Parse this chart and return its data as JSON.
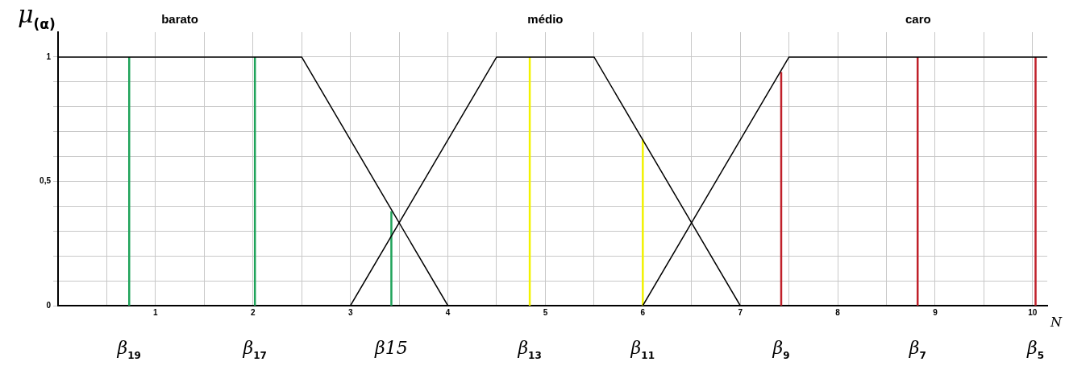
{
  "chart_data": {
    "type": "line",
    "xlabel": "N",
    "ylabel": "μ$_{(α)}$",
    "xlim": [
      0,
      10.15
    ],
    "ylim": [
      0,
      1.1
    ],
    "xticks": [
      {
        "value": 0.5,
        "label": null
      },
      1,
      {
        "value": 1.5,
        "label": null
      },
      2,
      {
        "value": 2.5,
        "label": null
      },
      3,
      {
        "value": 3.5,
        "label": null
      },
      4,
      {
        "value": 4.5,
        "label": null
      },
      5,
      {
        "value": 5.5,
        "label": null
      },
      6,
      {
        "value": 6.5,
        "label": null
      },
      7,
      {
        "value": 7.5,
        "label": null
      },
      8,
      {
        "value": 8.5,
        "label": null
      },
      9,
      {
        "value": 9.5,
        "label": null
      },
      10
    ],
    "yticks": [
      0,
      {
        "value": 0.1,
        "label": null
      },
      {
        "value": 0.2,
        "label": null
      },
      {
        "value": 0.3,
        "label": null
      },
      {
        "value": 0.4,
        "label": null
      },
      {
        "value": 0.5,
        "label": "0,5"
      },
      {
        "value": 0.6,
        "label": null
      },
      {
        "value": 0.7,
        "label": null
      },
      {
        "value": 0.8,
        "label": null
      },
      {
        "value": 0.9,
        "label": null
      },
      {
        "value": 1,
        "label": "1"
      }
    ],
    "grid": true,
    "legend": false,
    "marker": "none",
    "line_style": "solid",
    "series": [
      {
        "name": "barato",
        "color": "#000000",
        "x": [
          0,
          2.5,
          4
        ],
        "values": [
          1,
          1,
          0
        ]
      },
      {
        "name": "médio",
        "color": "#000000",
        "x": [
          3,
          4.5,
          5.5,
          7
        ],
        "values": [
          0,
          1,
          1,
          0
        ]
      },
      {
        "name": "caro",
        "color": "#000000",
        "x": [
          6,
          7.5,
          10.15
        ],
        "values": [
          0,
          1,
          1
        ]
      },
      {
        "name": "β$_{19}$",
        "color": "#1fa35a",
        "x": [
          0.73,
          0.73
        ],
        "values": [
          0,
          1
        ]
      },
      {
        "name": "β$_{17}$",
        "color": "#1fa35a",
        "x": [
          2.02,
          2.02
        ],
        "values": [
          0,
          1
        ]
      },
      {
        "name": "β15",
        "color": "#1fa35a",
        "x": [
          3.42,
          3.42
        ],
        "values": [
          0,
          0.38
        ]
      },
      {
        "name": "β$_{13}$",
        "color": "#f2f200",
        "x": [
          4.84,
          4.84
        ],
        "values": [
          0,
          1
        ]
      },
      {
        "name": "β$_{11}$",
        "color": "#f2f200",
        "x": [
          6.0,
          6.0
        ],
        "values": [
          0,
          0.67
        ]
      },
      {
        "name": "β$_{9}$",
        "color": "#c0202a",
        "x": [
          7.42,
          7.42
        ],
        "values": [
          0,
          0.94
        ]
      },
      {
        "name": "β$_{7}$",
        "color": "#c0202a",
        "x": [
          8.82,
          8.82
        ],
        "values": [
          0,
          1
        ]
      },
      {
        "name": "β$_{5}$",
        "color": "#c0202a",
        "x": [
          10.03,
          10.03
        ],
        "values": [
          0,
          1
        ]
      }
    ]
  }
}
